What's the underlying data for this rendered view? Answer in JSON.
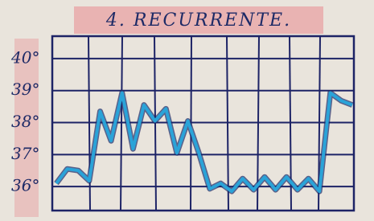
{
  "chart_data": {
    "type": "line",
    "title": "4. RECURRENTE.",
    "values": [
      36.1,
      36.55,
      36.5,
      36.18,
      38.35,
      37.43,
      38.93,
      37.18,
      38.55,
      38.05,
      38.43,
      37.05,
      38.05,
      37.05,
      35.93,
      36.1,
      35.85,
      36.25,
      35.9,
      36.3,
      35.9,
      36.3,
      35.9,
      36.25,
      35.85,
      38.93,
      38.68,
      38.55
    ],
    "color": "#2aa3d8",
    "ylim": [
      35.25,
      40.7
    ],
    "yticks": [
      {
        "value": 36,
        "label": "36°"
      },
      {
        "value": 37,
        "label": "37°"
      },
      {
        "value": 38,
        "label": "38°"
      },
      {
        "value": 39,
        "label": "39°"
      },
      {
        "value": 40,
        "label": "40°"
      }
    ],
    "grid": true
  }
}
